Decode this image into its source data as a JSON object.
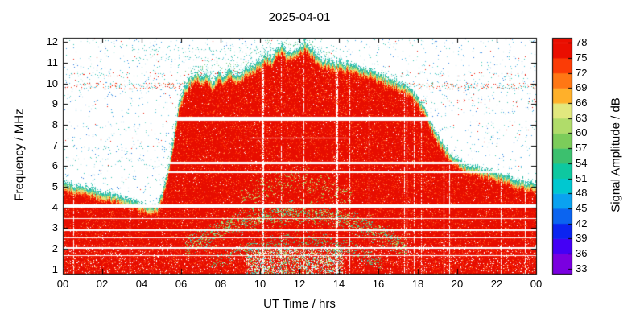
{
  "chart_data": {
    "type": "heatmap",
    "title": "2025-04-01",
    "xlabel": "UT Time / hrs",
    "ylabel": "Frequency / MHz",
    "x_range_hours": [
      0,
      24
    ],
    "y_range_mhz": [
      0.8,
      12.2
    ],
    "x_ticks": {
      "hours": [
        0,
        2,
        4,
        6,
        8,
        10,
        12,
        14,
        16,
        18,
        20,
        22,
        24
      ],
      "labels": [
        "00",
        "02",
        "04",
        "06",
        "08",
        "10",
        "12",
        "14",
        "16",
        "18",
        "20",
        "22",
        "00"
      ]
    },
    "y_ticks": [
      1,
      2,
      3,
      4,
      5,
      6,
      7,
      8,
      9,
      10,
      11,
      12
    ],
    "colorbar": {
      "label": "Signal Amplitude / dB",
      "min": 33,
      "max": 78,
      "tick_step": 3,
      "ticks": [
        33,
        36,
        39,
        42,
        45,
        48,
        51,
        54,
        57,
        60,
        63,
        66,
        69,
        72,
        75,
        78
      ],
      "scale_range": [
        32,
        79
      ],
      "colors": [
        "#7a00e0",
        "#4400f5",
        "#0b24f0",
        "#0b64f0",
        "#0aa2f0",
        "#00c8d0",
        "#0ec8a0",
        "#3cc06e",
        "#7ccc5a",
        "#b0dc6a",
        "#e2e87e",
        "#ffb02a",
        "#ff7714",
        "#fb3c06",
        "#ea0e00"
      ]
    },
    "envelope_mhz_by_hour": [
      [
        0,
        5.3
      ],
      [
        0.5,
        5.1
      ],
      [
        1,
        4.95
      ],
      [
        1.5,
        4.85
      ],
      [
        2,
        4.7
      ],
      [
        2.5,
        4.6
      ],
      [
        3,
        4.5
      ],
      [
        3.5,
        4.35
      ],
      [
        4,
        4.2
      ],
      [
        4.5,
        4.05
      ],
      [
        4.8,
        4.1
      ],
      [
        5,
        4.6
      ],
      [
        5.3,
        5.6
      ],
      [
        5.6,
        7.2
      ],
      [
        5.9,
        9.0
      ],
      [
        6.2,
        9.9
      ],
      [
        6.5,
        10.25
      ],
      [
        6.8,
        10.45
      ],
      [
        7,
        10.25
      ],
      [
        7.3,
        10.5
      ],
      [
        7.6,
        10.0
      ],
      [
        7.9,
        10.5
      ],
      [
        8.2,
        10.3
      ],
      [
        8.5,
        10.6
      ],
      [
        8.8,
        10.35
      ],
      [
        9.1,
        10.55
      ],
      [
        9.4,
        10.75
      ],
      [
        9.7,
        10.9
      ],
      [
        10,
        11.1
      ],
      [
        10.3,
        11.35
      ],
      [
        10.6,
        11.2
      ],
      [
        10.9,
        11.7
      ],
      [
        11.1,
        11.8
      ],
      [
        11.4,
        11.5
      ],
      [
        11.7,
        11.55
      ],
      [
        12,
        11.7
      ],
      [
        12.3,
        11.95
      ],
      [
        12.6,
        11.65
      ],
      [
        12.9,
        11.3
      ],
      [
        13.3,
        11.1
      ],
      [
        13.7,
        11.0
      ],
      [
        14.2,
        10.95
      ],
      [
        14.7,
        10.85
      ],
      [
        15.2,
        10.7
      ],
      [
        15.7,
        10.55
      ],
      [
        16.2,
        10.4
      ],
      [
        16.7,
        10.15
      ],
      [
        17.2,
        9.95
      ],
      [
        17.6,
        9.7
      ],
      [
        18,
        9.3
      ],
      [
        18.3,
        8.85
      ],
      [
        18.6,
        8.2
      ],
      [
        19,
        7.5
      ],
      [
        19.4,
        6.85
      ],
      [
        19.8,
        6.45
      ],
      [
        20.2,
        6.2
      ],
      [
        20.6,
        6.05
      ],
      [
        21,
        5.95
      ],
      [
        21.5,
        5.8
      ],
      [
        22,
        5.65
      ],
      [
        22.5,
        5.5
      ],
      [
        23,
        5.35
      ],
      [
        23.5,
        5.25
      ],
      [
        24,
        5.15
      ]
    ],
    "interference_gaps": [
      {
        "f": 8.28,
        "w": 5,
        "t0": 0,
        "t1": 24
      },
      {
        "f": 7.35,
        "w": 1,
        "t0": 9.5,
        "t1": 14.5
      },
      {
        "f": 6.15,
        "w": 3,
        "t0": 0,
        "t1": 24
      },
      {
        "f": 5.72,
        "w": 2,
        "t0": 0,
        "t1": 24
      },
      {
        "f": 4.08,
        "w": 4,
        "t0": 0,
        "t1": 24
      },
      {
        "f": 3.45,
        "w": 1,
        "t0": 0,
        "t1": 24
      },
      {
        "f": 2.92,
        "w": 2,
        "t0": 0,
        "t1": 24
      },
      {
        "f": 2.52,
        "w": 1,
        "t0": 0,
        "t1": 24
      },
      {
        "f": 2.05,
        "w": 2,
        "t0": 0,
        "t1": 24
      },
      {
        "f": 1.68,
        "w": 1,
        "t0": 0,
        "t1": 24
      }
    ],
    "speckle_bands": [
      {
        "f0": 9.72,
        "f1": 10.04,
        "t0": 0,
        "t1": 24,
        "density": 0.14,
        "palette": [
          "#ee2211",
          "#3cc8b4",
          "#59c4e0",
          "#ff5522"
        ]
      },
      {
        "f0": 10.34,
        "f1": 10.52,
        "t0": 0,
        "t1": 24,
        "density": 0.05,
        "palette": [
          "#3cc8b4",
          "#ee2211",
          "#59c4e0"
        ]
      },
      {
        "f0": 11.5,
        "f1": 11.74,
        "t0": 3.5,
        "t1": 14.5,
        "density": 0.05,
        "palette": [
          "#46c4b4",
          "#63cfd4"
        ]
      },
      {
        "f0": 11.08,
        "f1": 11.3,
        "t0": 3.5,
        "t1": 14.5,
        "density": 0.045,
        "palette": [
          "#46c4b4",
          "#8fd9ec"
        ]
      },
      {
        "f0": 6.8,
        "f1": 7.0,
        "t0": 0,
        "t1": 5.6,
        "density": 0.05,
        "palette": [
          "#46c4b4",
          "#3f9fe8"
        ]
      },
      {
        "f0": 5.95,
        "f1": 6.35,
        "t0": 0,
        "t1": 5.2,
        "density": 0.04,
        "palette": [
          "#46c4b4",
          "#8fd9ec"
        ]
      },
      {
        "f0": 9.0,
        "f1": 9.2,
        "t0": 18,
        "t1": 24,
        "density": 0.04,
        "palette": [
          "#ee2211",
          "#46c4b4"
        ]
      }
    ],
    "echo_arcs": [
      {
        "t0": 6.2,
        "t1": 17.4,
        "f_start": 2.1,
        "f_peak": 3.78,
        "spread": 0.55,
        "per_col": 7,
        "palette": [
          "#7ecf55",
          "#a8dc66",
          "#46bb88",
          "#d8e58c",
          "#3cc8b4"
        ]
      },
      {
        "t0": 7.5,
        "t1": 16.2,
        "f_start": 1.35,
        "f_peak": 2.45,
        "spread": 0.4,
        "per_col": 3,
        "palette": [
          "#7ecf55",
          "#46bb88",
          "#3cc8b4"
        ]
      },
      {
        "t0": 9.0,
        "t1": 14.6,
        "f_start": 4.35,
        "f_peak": 5.3,
        "spread": 0.6,
        "per_col": 3,
        "palette": [
          "#a8dc66",
          "#7ecf55",
          "#d8e58c"
        ]
      }
    ],
    "background_speckle": {
      "density": 0.022,
      "palette": [
        "#59c4e0",
        "#3f9fe8",
        "#3cc8b4",
        "#8fd9ec",
        "#2b7de0",
        "#74d6c8"
      ],
      "red_dot_p": 0.0015,
      "red_dot": "#ee2211"
    },
    "plume": {
      "t0": 5.1,
      "t1": 13.8,
      "height_mhz": 0.95,
      "density": 0.14,
      "palette": [
        "#46c4b4",
        "#63cfd4",
        "#7ed08a"
      ]
    },
    "bottom_clutter": {
      "t0": 9.3,
      "t1": 14.2,
      "f_max": 2.0,
      "p": 0.42,
      "palette": [
        "#ffffff",
        "#3cc8b4",
        "#a8dc66",
        "#ffffff",
        "#63cfd4",
        "#e6e07a"
      ]
    },
    "vertical_gaps_hr": [
      10.15,
      13.9
    ],
    "region_noise": {
      "red_base": "#e70d00",
      "red_bright": "#ff2d00",
      "orange": "#ff5522",
      "orange_dot": "#ff9440",
      "white": "#ffffff",
      "fringe_cyan": [
        "#2fbfae",
        "#45ccc0",
        "#27b39b"
      ],
      "fringe_green": [
        "#7ecf70",
        "#5fc489",
        "#98d884"
      ],
      "fringe_yellow": [
        "#e6e07a",
        "#d8e58c",
        "#f0d460"
      ],
      "fringe_orange": [
        "#ff8833",
        "#ffaa44",
        "#ff7722"
      ]
    }
  }
}
